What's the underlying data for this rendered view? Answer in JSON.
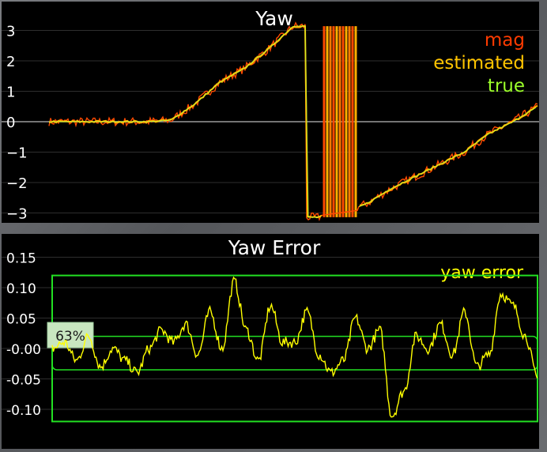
{
  "chart_data": [
    {
      "type": "line",
      "title": "Yaw",
      "ylim": [
        -3.5,
        3.5
      ],
      "yticks": [
        "3",
        "2",
        "1",
        "0",
        "−1",
        "−2",
        "−3"
      ],
      "ytick_values": [
        3,
        2,
        1,
        0,
        -1,
        -2,
        -3
      ],
      "grid": true,
      "legend_position": "top-right",
      "legend": [
        {
          "name": "mag",
          "color": "#ff3b00"
        },
        {
          "name": "estimated",
          "color": "#ffc400"
        },
        {
          "name": "true",
          "color": "#9cff2a"
        }
      ],
      "series": [
        {
          "name": "mag",
          "color": "#ff4a00"
        },
        {
          "name": "estimated",
          "color": "#ffb000"
        },
        {
          "name": "true",
          "color": "#c8ff30"
        }
      ],
      "x": [
        0,
        1,
        2,
        3,
        4,
        5,
        6,
        7,
        8,
        9,
        10,
        11,
        12,
        13,
        14,
        15,
        16,
        17,
        18,
        19,
        20
      ],
      "true_values": [
        0,
        0,
        0,
        0,
        0,
        0.05,
        0.6,
        1.3,
        1.75,
        2.4,
        3.14,
        -3.14,
        -3.0,
        -2.7,
        -2.2,
        -1.8,
        -1.4,
        -1.0,
        -0.4,
        0.0,
        0.5
      ]
    },
    {
      "type": "line",
      "title": "Yaw Error",
      "ylim": [
        -0.14,
        0.16
      ],
      "yticks": [
        "0.15",
        "0.10",
        "0.05",
        "-0.00",
        "-0.05",
        "-0.10"
      ],
      "ytick_values": [
        0.15,
        0.1,
        0.05,
        0.0,
        -0.05,
        -0.1
      ],
      "grid": true,
      "legend_position": "top-right",
      "legend": [
        {
          "name": "yaw error",
          "color": "#ffff00"
        }
      ],
      "series": [
        {
          "name": "yaw error",
          "color": "#ffff00",
          "x": [
            0,
            1,
            2,
            3,
            4,
            5,
            6,
            7,
            8,
            9,
            10,
            11,
            12,
            13,
            14,
            15,
            16,
            17,
            18,
            19,
            20,
            21,
            22,
            23,
            24,
            25,
            26,
            27,
            28,
            29,
            30,
            31,
            32,
            33,
            34,
            35,
            36,
            37,
            38,
            39,
            40
          ],
          "values": [
            0.0,
            0.01,
            -0.02,
            0.02,
            -0.03,
            0.0,
            -0.02,
            -0.04,
            0.0,
            0.03,
            0.01,
            0.04,
            -0.01,
            0.06,
            0.0,
            0.11,
            0.03,
            -0.02,
            0.07,
            0.01,
            0.01,
            0.06,
            -0.01,
            -0.04,
            -0.02,
            0.05,
            0.0,
            0.03,
            -0.11,
            -0.07,
            0.02,
            0.0,
            0.04,
            -0.01,
            0.06,
            -0.03,
            -0.01,
            0.09,
            0.07,
            0.02,
            -0.05
          ]
        }
      ],
      "threshold_box": {
        "upper": 0.12,
        "lower": -0.12
      },
      "inner_band": {
        "upper": 0.02,
        "lower": -0.035
      },
      "percentage_label": "63%"
    }
  ]
}
